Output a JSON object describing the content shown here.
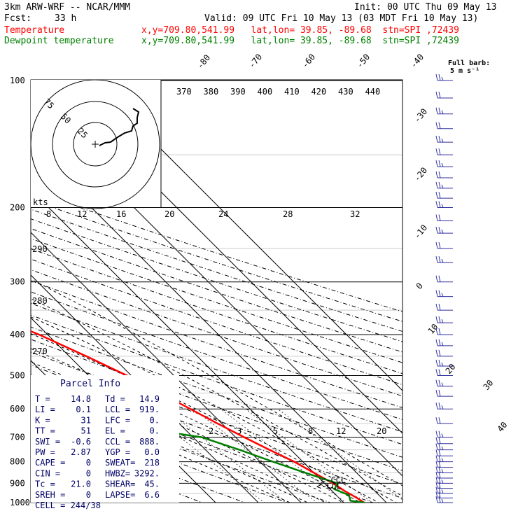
{
  "header": {
    "model": "3km ARW-WRF -- NCAR/MMM",
    "init": "Init: 00 UTC Thu 09 May 13",
    "fcst_label": "Fcst:",
    "fcst_value": "33 h",
    "valid": "Valid: 09 UTC Fri 10 May 13 (03 MDT Fri 10 May 13)",
    "temp_label": "Temperature",
    "temp_info": "x,y=709.80,541.99   lat,lon= 39.85, -89.68  stn=SPI ,72439",
    "dew_label": "Dewpoint temperature",
    "dew_info": "x,y=709.80,541.99   lat,lon= 39.85, -89.68  stn=SPI ,72439",
    "barb_label": "Full barb:",
    "barb_unit": "5 m s⁻¹",
    "colors": {
      "temperature": "#ff0000",
      "dewpoint": "#008000",
      "info": "#000066"
    }
  },
  "chart_data": {
    "type": "line",
    "subtype": "skew-T log-p",
    "y_axis": "Pressure (hPa)",
    "y_scale": "log",
    "y_ticks": [
      100,
      200,
      300,
      400,
      500,
      600,
      700,
      800,
      900,
      1000
    ],
    "isotherm_labels": [
      "-80",
      "-70",
      "-60",
      "-50",
      "-40",
      "-30",
      "-20",
      "-10",
      "0",
      "10",
      "20",
      "30",
      "40"
    ],
    "theta_labels": [
      "370",
      "380",
      "390",
      "400",
      "410",
      "420",
      "430",
      "440"
    ],
    "theta_side_labels": [
      "290",
      "280",
      "270"
    ],
    "mixing_ratio_labels": [
      "2",
      "3",
      "5",
      "8",
      "12",
      "20"
    ],
    "series": [
      {
        "name": "Temperature",
        "color": "#ff0000",
        "points": [
          [
            100,
            -59
          ],
          [
            115,
            -61
          ],
          [
            130,
            -59
          ],
          [
            150,
            -53
          ],
          [
            160,
            -52
          ],
          [
            175,
            -54
          ],
          [
            190,
            -56
          ],
          [
            200,
            -58
          ],
          [
            220,
            -57
          ],
          [
            250,
            -52
          ],
          [
            280,
            -46
          ],
          [
            300,
            -41
          ],
          [
            330,
            -35
          ],
          [
            370,
            -27
          ],
          [
            400,
            -22
          ],
          [
            450,
            -16
          ],
          [
            500,
            -11
          ],
          [
            540,
            -8
          ],
          [
            600,
            -4
          ],
          [
            650,
            -1
          ],
          [
            700,
            2
          ],
          [
            750,
            5
          ],
          [
            800,
            8
          ],
          [
            850,
            10
          ],
          [
            900,
            12
          ],
          [
            940,
            13
          ],
          [
            975,
            14.2
          ],
          [
            1000,
            14.8
          ]
        ]
      },
      {
        "name": "Dewpoint temperature",
        "color": "#008000",
        "points": [
          [
            100,
            -72
          ],
          [
            110,
            -73
          ],
          [
            120,
            -75
          ],
          [
            140,
            -77
          ],
          [
            160,
            -80
          ],
          [
            180,
            -82
          ],
          [
            200,
            -80
          ],
          [
            230,
            -82
          ],
          [
            250,
            -76
          ],
          [
            280,
            -71
          ],
          [
            300,
            -67
          ],
          [
            330,
            -70
          ],
          [
            360,
            -67
          ],
          [
            400,
            -59
          ],
          [
            450,
            -47
          ],
          [
            500,
            -38
          ],
          [
            550,
            -38
          ],
          [
            590,
            -40
          ],
          [
            650,
            -26
          ],
          [
            700,
            -8
          ],
          [
            750,
            -2
          ],
          [
            800,
            3
          ],
          [
            850,
            8
          ],
          [
            900,
            13
          ],
          [
            930,
            11
          ],
          [
            960,
            13
          ],
          [
            990,
            12
          ],
          [
            1000,
            14.9
          ]
        ]
      }
    ],
    "wind_barbs": [
      100,
      110,
      120,
      130,
      140,
      150,
      160,
      170,
      180,
      190,
      200,
      215,
      230,
      250,
      270,
      300,
      325,
      350,
      375,
      400,
      425,
      450,
      475,
      500,
      530,
      560,
      600,
      650,
      700,
      725,
      750,
      775,
      800,
      825,
      850,
      875,
      900,
      925,
      950,
      975,
      1000
    ],
    "hodograph": {
      "ring_labels": [
        "25",
        "50",
        "75"
      ],
      "ring_unit": "kts",
      "speed_labels": [
        "8",
        "12",
        "16",
        "20",
        "24",
        "28",
        "32"
      ]
    },
    "annotations": [
      "CCL",
      "LCL"
    ]
  },
  "parcel_info": {
    "title": "Parcel Info",
    "rows": [
      [
        "T  =",
        "14.8",
        "Td =",
        "14.9"
      ],
      [
        "LI =",
        "0.1",
        "LCL =",
        "919."
      ],
      [
        "K  =",
        "31",
        "LFC =",
        "0."
      ],
      [
        "TT =",
        "51",
        "EL =",
        "0."
      ],
      [
        "SWI =",
        "-0.6",
        "CCL =",
        "888."
      ],
      [
        "PW =",
        "2.87",
        "YGP =",
        "0.0"
      ],
      [
        "CAPE =",
        "0",
        "SWEAT=",
        "218"
      ],
      [
        "CIN =",
        "0",
        "HWBZ=",
        "3292."
      ],
      [
        "Tc =",
        "21.0",
        "SHEAR=",
        "45."
      ],
      [
        "SREH =",
        "0",
        "LAPSE=",
        "6.6"
      ]
    ],
    "cell_label": "CELL = 244/38"
  }
}
